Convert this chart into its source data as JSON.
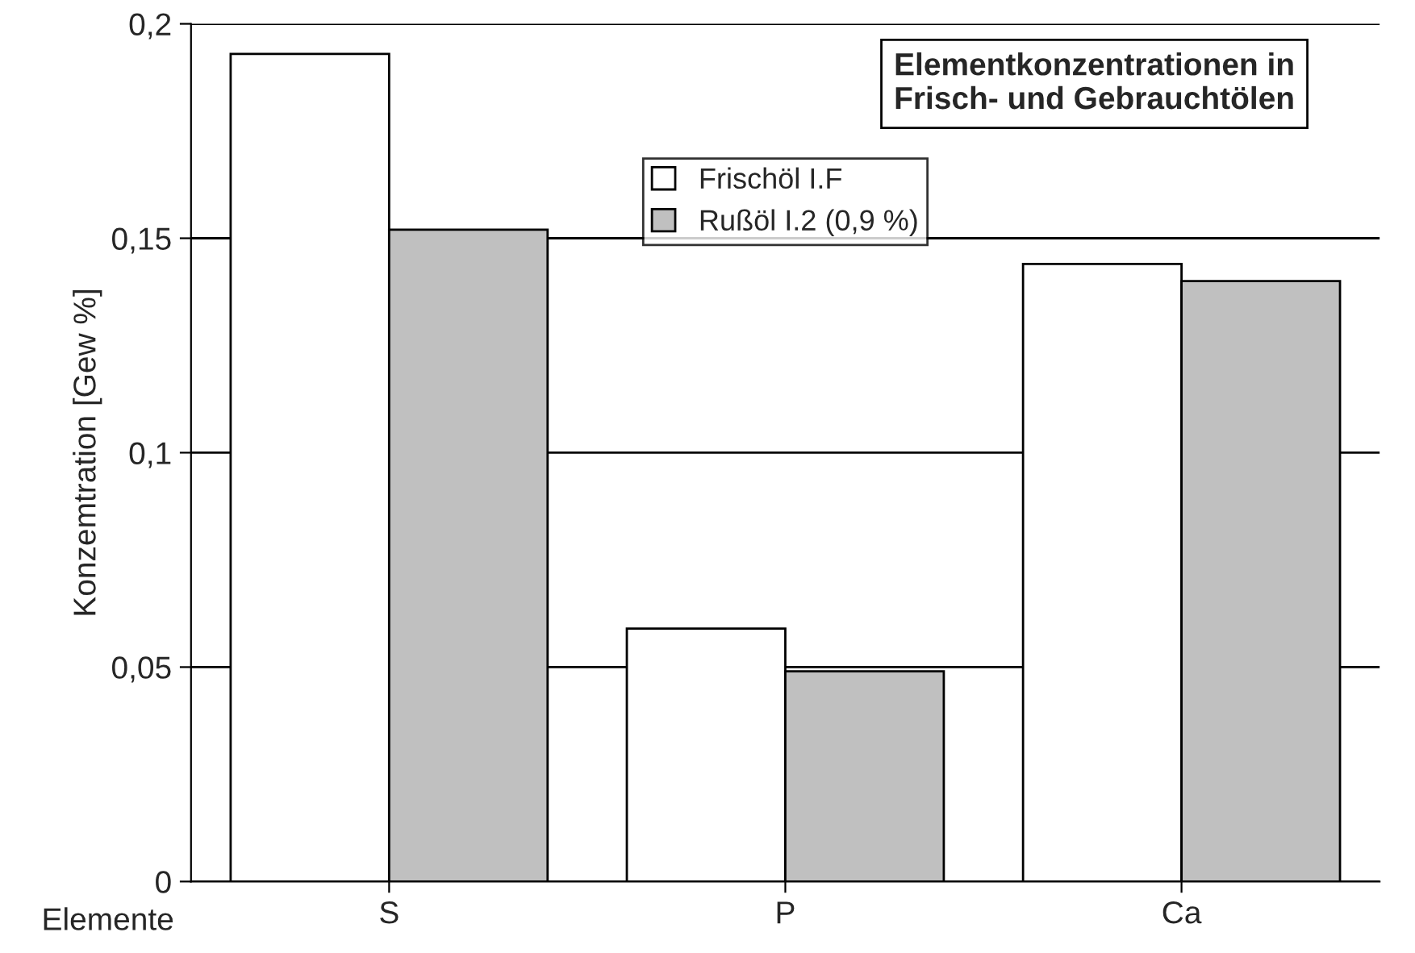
{
  "chart_data": {
    "type": "bar",
    "title": "Elementkonzentrationen in\nFrisch- und Gebrauchtölen",
    "xlabel": "Elemente",
    "ylabel": "Konzemtration [Gew %]",
    "categories": [
      "S",
      "P",
      "Ca"
    ],
    "series": [
      {
        "name": "Frischöl I.F",
        "color": "#ffffff",
        "values": [
          0.193,
          0.059,
          0.144
        ]
      },
      {
        "name": "Rußöl I.2 (0,9 %)",
        "color": "#c0c0c0",
        "values": [
          0.152,
          0.049,
          0.14
        ]
      }
    ],
    "ylim": [
      0,
      0.2
    ],
    "yticks": [
      {
        "value": 0,
        "label": "0"
      },
      {
        "value": 0.05,
        "label": "0,05"
      },
      {
        "value": 0.1,
        "label": "0,1"
      },
      {
        "value": 0.15,
        "label": "0,15"
      },
      {
        "value": 0.2,
        "label": "0,2"
      }
    ],
    "grid": "y",
    "legend": "top"
  }
}
